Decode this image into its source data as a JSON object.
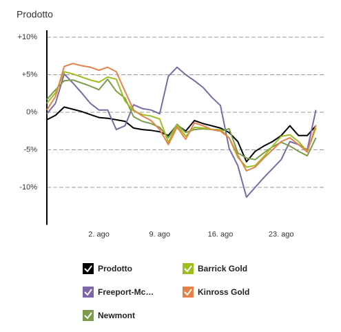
{
  "chart_data": {
    "type": "line",
    "title": "Prodotto",
    "categories": [
      null,
      null,
      null,
      null,
      null,
      null,
      "2. ago",
      null,
      null,
      null,
      null,
      null,
      null,
      "9. ago",
      null,
      null,
      null,
      null,
      null,
      null,
      "16. ago",
      null,
      null,
      null,
      null,
      null,
      null,
      "23. ago",
      null,
      null,
      null,
      null
    ],
    "series": [
      {
        "name": "Prodotto",
        "color": "#000000",
        "values": [
          -1,
          -0.4,
          0.7,
          0.4,
          0.1,
          -0.3,
          -0.7,
          -0.8,
          -1,
          -1.2,
          -2.1,
          -2.3,
          -2.4,
          -2.6,
          -3.1,
          -1.7,
          -2.5,
          -1.1,
          -1.5,
          -1.8,
          -2.1,
          -2.7,
          -3.9,
          -6.6,
          -5.2,
          -4.5,
          -3.9,
          -3.1,
          -1.8,
          -3.1,
          -3.1,
          -1.8
        ]
      },
      {
        "name": "Freeport-Mc…",
        "color": "#7b68a6",
        "values": [
          -0.2,
          1.2,
          5.1,
          3.9,
          2.6,
          1.2,
          0.3,
          0.3,
          -2.3,
          -1.8,
          1,
          0.5,
          0.3,
          -0.2,
          4.8,
          6,
          5,
          4.2,
          3.3,
          2,
          0.9,
          -4.8,
          -7.1,
          -11.3,
          -10,
          -8.7,
          -7.5,
          -6.3,
          -3.9,
          -4.3,
          -5,
          0.3
        ]
      },
      {
        "name": "Newmont",
        "color": "#7b9c4a",
        "values": [
          1.7,
          3,
          4.2,
          4.3,
          3.9,
          3.5,
          3,
          4.4,
          2.8,
          1.9,
          -0.6,
          -1.2,
          -1.5,
          -2,
          -3.4,
          -1.6,
          -2.7,
          -2.3,
          -2.2,
          -2.3,
          -2.5,
          -2.2,
          -5.4,
          -6.1,
          -6.3,
          -5.4,
          -4.6,
          -4,
          -4.5,
          -5.2,
          -5.8,
          -3.4
        ]
      },
      {
        "name": "Barrick Gold",
        "color": "#9cbe1e",
        "values": [
          1.2,
          2.6,
          5.4,
          5.1,
          4.7,
          4.3,
          4,
          4.7,
          4.4,
          1.5,
          0.2,
          -0.3,
          -0.5,
          -0.9,
          -4,
          -1.7,
          -3.2,
          -2,
          -2.1,
          -2.3,
          -2.3,
          -3.4,
          -6,
          -7.3,
          -7.1,
          -5.9,
          -4.5,
          -3.2,
          -3,
          -3.9,
          -5.2,
          -2.1
        ]
      },
      {
        "name": "Kinross Gold",
        "color": "#e3834a",
        "values": [
          0.3,
          2.1,
          6.1,
          6.5,
          6.2,
          6,
          5.6,
          6,
          5.4,
          2.8,
          0.3,
          -0.5,
          -1.1,
          -2.3,
          -4.3,
          -2,
          -3.6,
          -1.4,
          -1.8,
          -2.3,
          -2.5,
          -3.4,
          -5.7,
          -7.8,
          -7.3,
          -6.1,
          -5,
          -3.9,
          -3.4,
          -4.3,
          -5.3,
          -1.7
        ]
      }
    ],
    "ylim": [
      -15,
      10
    ],
    "yticks": [
      {
        "value": 10,
        "label": "+10%"
      },
      {
        "value": 5,
        "label": "+5%"
      },
      {
        "value": 0,
        "label": "0%"
      },
      {
        "value": -5,
        "label": "-5%"
      },
      {
        "value": -10,
        "label": "-10%"
      }
    ],
    "grid": true
  }
}
